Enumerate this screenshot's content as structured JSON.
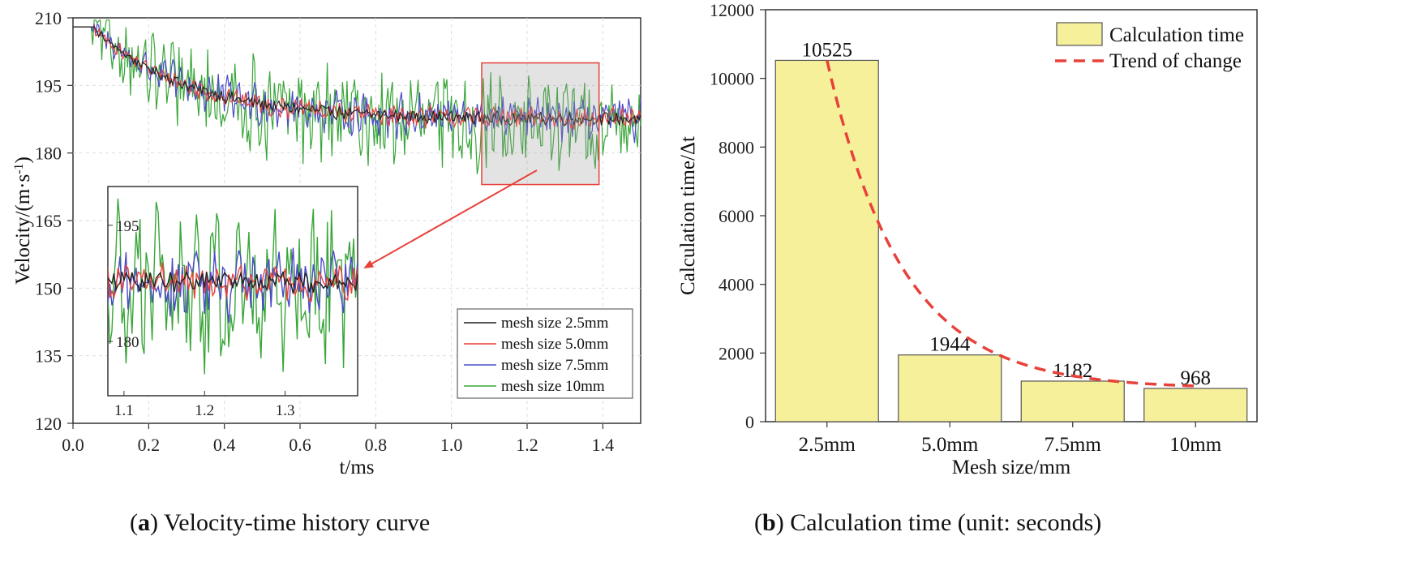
{
  "captions": {
    "a_letter": "a",
    "a_text": "Velocity-time history curve",
    "b_letter": "b",
    "b_text": "Calculation time (unit: seconds)"
  },
  "chart_data": [
    {
      "type": "line",
      "xlabel": "t/ms",
      "ylabel": "Velocity/(m·s-1)",
      "xlim": [
        0.0,
        1.5
      ],
      "ylim": [
        120,
        210
      ],
      "xticks": [
        "0.0",
        "0.2",
        "0.4",
        "0.6",
        "0.8",
        "1.0",
        "1.2",
        "1.4"
      ],
      "yticks": [
        "120",
        "135",
        "150",
        "165",
        "180",
        "195",
        "210"
      ],
      "grid": true,
      "legend_position": "bottom-right",
      "series": [
        {
          "name": "mesh size 2.5mm",
          "color": "#222222",
          "initial": 208,
          "settle": 187.5,
          "noise": 1.2
        },
        {
          "name": "mesh size 5.0mm",
          "color": "#e8413a",
          "initial": 208,
          "settle": 187.5,
          "noise": 2.0
        },
        {
          "name": "mesh size 7.5mm",
          "color": "#4b4bc8",
          "initial": 208,
          "settle": 187.5,
          "noise": 4.0
        },
        {
          "name": "mesh size 10mm",
          "color": "#3aa63a",
          "initial": 208,
          "settle": 186.5,
          "noise": 9.0
        }
      ],
      "zoom_box": {
        "xlim": [
          1.08,
          1.39
        ],
        "ylim": [
          173,
          200
        ]
      },
      "inset": {
        "xlim": [
          1.08,
          1.39
        ],
        "ylim": [
          173,
          200
        ],
        "xticks": [
          "1.1",
          "1.2",
          "1.3"
        ],
        "yticks": [
          "180",
          "195"
        ]
      }
    },
    {
      "type": "bar",
      "xlabel": "Mesh size/mm",
      "ylabel": "Calculation time/Δt",
      "categories": [
        "2.5mm",
        "5.0mm",
        "7.5mm",
        "10mm"
      ],
      "values": [
        10525,
        1944,
        1182,
        968
      ],
      "value_labels": [
        "10525",
        "1944",
        "1182",
        "968"
      ],
      "ylim": [
        0,
        12000
      ],
      "yticks": [
        "0",
        "2000",
        "4000",
        "6000",
        "8000",
        "10000",
        "12000"
      ],
      "legend_position": "top-right",
      "series": [
        {
          "name": "Calculation time",
          "color": "#f6f09a"
        }
      ],
      "trend": {
        "name": "Trend of change",
        "color": "#e8413a",
        "style": "dashed"
      }
    }
  ]
}
